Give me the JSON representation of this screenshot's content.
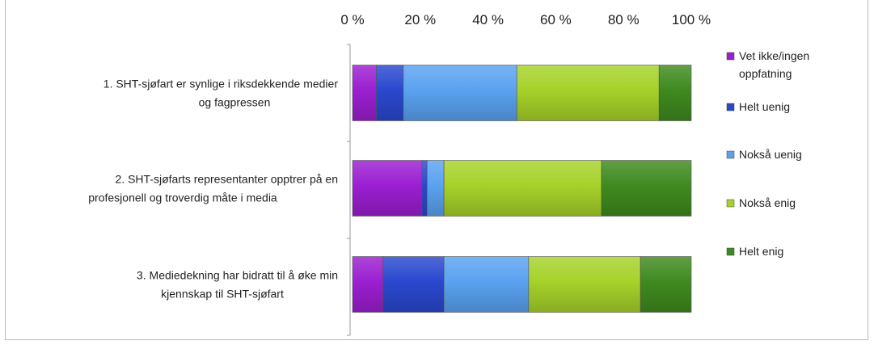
{
  "chart_data": {
    "type": "bar",
    "orientation": "horizontal",
    "stacked": "percent",
    "title": "",
    "xlabel": "",
    "ylabel": "",
    "xlim": [
      0,
      100
    ],
    "x_ticks": [
      "0 %",
      "20 %",
      "40 %",
      "60 %",
      "80 %",
      "100 %"
    ],
    "x_axis_position": "top",
    "grid": false,
    "legend_position": "right",
    "categories": [
      [
        "1. SHT-sjøfart  er synlige i riksdekkende medier",
        "og fagpressen"
      ],
      [
        "2. SHT-sjøfarts representanter opptrer på en",
        "profesjonell og troverdig måte  i media"
      ],
      [
        "3. Mediedekning har bidratt til å øke min",
        "kjennskap til SHT-sjøfart"
      ]
    ],
    "series": [
      {
        "name": [
          "Vet ikke/ingen",
          "oppfatning"
        ],
        "color": "#9b1fd1",
        "values": [
          7,
          20.5,
          9
        ]
      },
      {
        "name": [
          "Helt uenig"
        ],
        "color": "#2a48cf",
        "values": [
          8,
          1.5,
          18
        ]
      },
      {
        "name": [
          "Nokså uenig"
        ],
        "color": "#5aa2f0",
        "values": [
          33.5,
          5,
          25
        ]
      },
      {
        "name": [
          "Nokså enig"
        ],
        "color": "#a6d22a",
        "values": [
          42,
          46.5,
          33
        ]
      },
      {
        "name": [
          "Helt enig"
        ],
        "color": "#3f8a1f",
        "values": [
          9.5,
          26.5,
          15
        ]
      }
    ]
  }
}
